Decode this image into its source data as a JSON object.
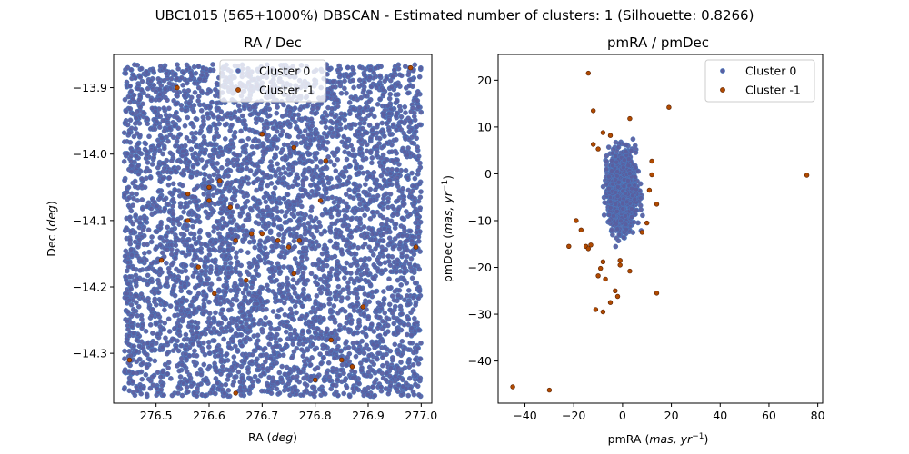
{
  "figure": {
    "suptitle": "UBC1015 (565+1000%) DBSCAN - Estimated number of clusters: 1 (Silhouette: 0.8266)"
  },
  "colors": {
    "cluster0": "#5a5fa0",
    "cluster0_edge": "#4a7fc4",
    "cluster_neg1": "#b04a00",
    "cluster_neg1_edge": "#5a2000"
  },
  "chart_data": [
    {
      "type": "scatter",
      "title": "RA / Dec",
      "xlabel": "RA ($deg$)",
      "ylabel": "Dec ($deg$)",
      "xlim": [
        276.42,
        277.02
      ],
      "ylim": [
        -14.375,
        -13.85
      ],
      "xticks": [
        276.5,
        276.6,
        276.7,
        276.8,
        276.9,
        277.0
      ],
      "xtick_labels": [
        "276.5",
        "276.6",
        "276.7",
        "276.8",
        "276.9",
        "277.0"
      ],
      "yticks": [
        -13.9,
        -14.0,
        -14.1,
        -14.2,
        -14.3
      ],
      "ytick_labels": [
        "−13.9",
        "−14.0",
        "−14.1",
        "−14.2",
        "−14.3"
      ],
      "legend": {
        "position": "top-center",
        "entries": [
          "Cluster 0",
          "Cluster -1"
        ]
      },
      "series": [
        {
          "name": "Cluster 0",
          "density": "uniform dense field",
          "x_range": [
            276.44,
            277.0
          ],
          "y_range": [
            -14.365,
            -13.865
          ],
          "approx_count": 5000
        },
        {
          "name": "Cluster -1",
          "points": [
            [
              276.54,
              -13.9
            ],
            [
              276.98,
              -13.87
            ],
            [
              276.7,
              -13.97
            ],
            [
              276.76,
              -13.99
            ],
            [
              276.82,
              -14.01
            ],
            [
              276.6,
              -14.05
            ],
            [
              276.62,
              -14.04
            ],
            [
              276.56,
              -14.06
            ],
            [
              276.6,
              -14.07
            ],
            [
              276.64,
              -14.08
            ],
            [
              276.56,
              -14.1
            ],
            [
              276.68,
              -14.12
            ],
            [
              276.65,
              -14.13
            ],
            [
              276.7,
              -14.12
            ],
            [
              276.73,
              -14.13
            ],
            [
              276.77,
              -14.13
            ],
            [
              276.81,
              -14.07
            ],
            [
              276.75,
              -14.14
            ],
            [
              276.99,
              -14.14
            ],
            [
              276.51,
              -14.16
            ],
            [
              276.58,
              -14.17
            ],
            [
              276.67,
              -14.19
            ],
            [
              276.76,
              -14.18
            ],
            [
              276.61,
              -14.21
            ],
            [
              276.89,
              -14.23
            ],
            [
              276.83,
              -14.28
            ],
            [
              276.45,
              -14.31
            ],
            [
              276.85,
              -14.31
            ],
            [
              276.87,
              -14.32
            ],
            [
              276.8,
              -14.34
            ],
            [
              276.65,
              -14.36
            ]
          ]
        }
      ]
    },
    {
      "type": "scatter",
      "title": "pmRA / pmDec",
      "xlabel": "pmRA ($mas, yr^{-1}$)",
      "ylabel": "pmDec ($mas, yr^{-1}$)",
      "xlim": [
        -51,
        82
      ],
      "ylim": [
        -49,
        25.5
      ],
      "xticks": [
        -40,
        -20,
        0,
        20,
        40,
        60,
        80
      ],
      "xtick_labels": [
        "−40",
        "−20",
        "0",
        "20",
        "40",
        "60",
        "80"
      ],
      "yticks": [
        20,
        10,
        0,
        -10,
        -20,
        -30,
        -40
      ],
      "ytick_labels": [
        "20",
        "10",
        "0",
        "−10",
        "−20",
        "−30",
        "−40"
      ],
      "legend": {
        "position": "top-right",
        "entries": [
          "Cluster 0",
          "Cluster -1"
        ]
      },
      "series": [
        {
          "name": "Cluster 0",
          "density": "compact elliptical clump",
          "center": [
            0.0,
            -3.5
          ],
          "spread": [
            2.7,
            4.0
          ],
          "approx_count": 1400
        },
        {
          "name": "Cluster -1",
          "points": [
            [
              -14,
              21.5
            ],
            [
              -12,
              13.5
            ],
            [
              -8,
              8.8
            ],
            [
              -5,
              8.2
            ],
            [
              3,
              11.8
            ],
            [
              19,
              14.2
            ],
            [
              -12,
              6.3
            ],
            [
              -10,
              5.3
            ],
            [
              12,
              2.7
            ],
            [
              12,
              -0.2
            ],
            [
              11,
              -3.5
            ],
            [
              14,
              -6.5
            ],
            [
              10,
              -10.5
            ],
            [
              8,
              -12.5
            ],
            [
              -17,
              -12
            ],
            [
              -19,
              -10
            ],
            [
              -22,
              -15.5
            ],
            [
              -15,
              -15.5
            ],
            [
              -14,
              -16
            ],
            [
              -13,
              -15.2
            ],
            [
              -8,
              -18.8
            ],
            [
              -9,
              -20.2
            ],
            [
              -10,
              -21.8
            ],
            [
              -7,
              -22.5
            ],
            [
              -1,
              -18.5
            ],
            [
              -1,
              -19.5
            ],
            [
              3,
              -20.8
            ],
            [
              -3,
              -25
            ],
            [
              -2,
              -26.2
            ],
            [
              -5,
              -27.5
            ],
            [
              -8,
              -29.5
            ],
            [
              -11,
              -29
            ],
            [
              14,
              -25.5
            ],
            [
              -45,
              -45.5
            ],
            [
              -30,
              -46.2
            ],
            [
              75.5,
              -0.3
            ]
          ]
        }
      ]
    }
  ]
}
